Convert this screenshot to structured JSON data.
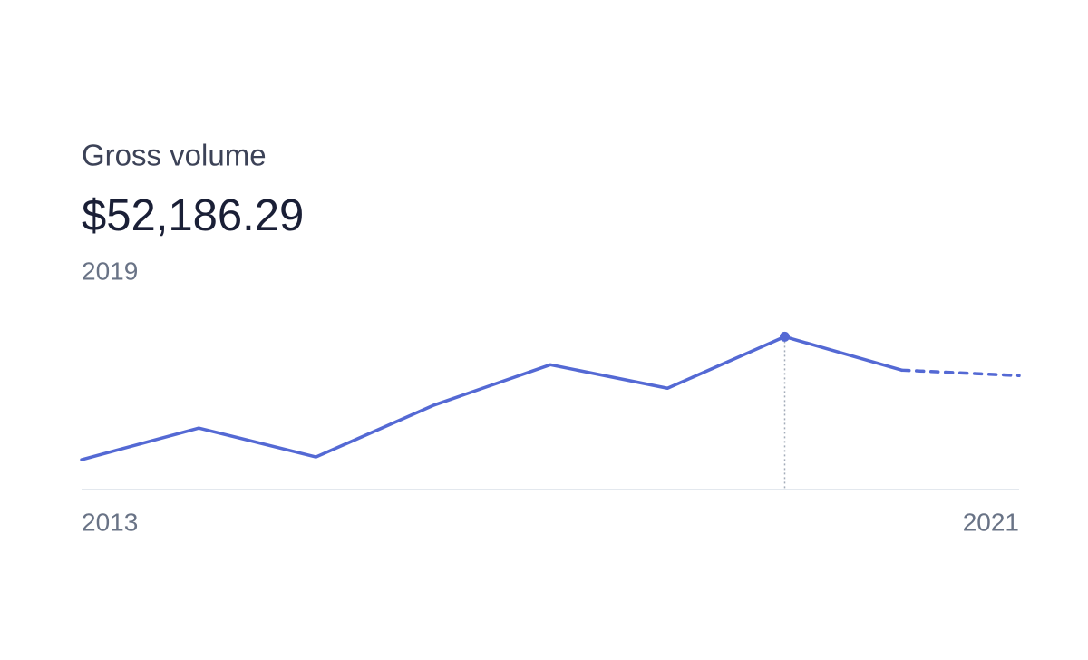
{
  "chart_data": {
    "type": "line",
    "title": "Gross volume",
    "x": [
      2013,
      2014,
      2015,
      2016,
      2017,
      2018,
      2019,
      2020,
      2021
    ],
    "values": [
      10190,
      21000,
      11120,
      28720,
      42610,
      34590,
      52186.29,
      40760,
      38910
    ],
    "value_labels": [
      null,
      null,
      null,
      null,
      null,
      null,
      "$52,186.29",
      null,
      null
    ],
    "highlight_x": 2019,
    "dash_after": 2020,
    "color": "#5469d4",
    "xlim": [
      2013,
      2021
    ],
    "xticks": [
      2013,
      2021
    ],
    "ylim": [
      0,
      65000
    ]
  }
}
